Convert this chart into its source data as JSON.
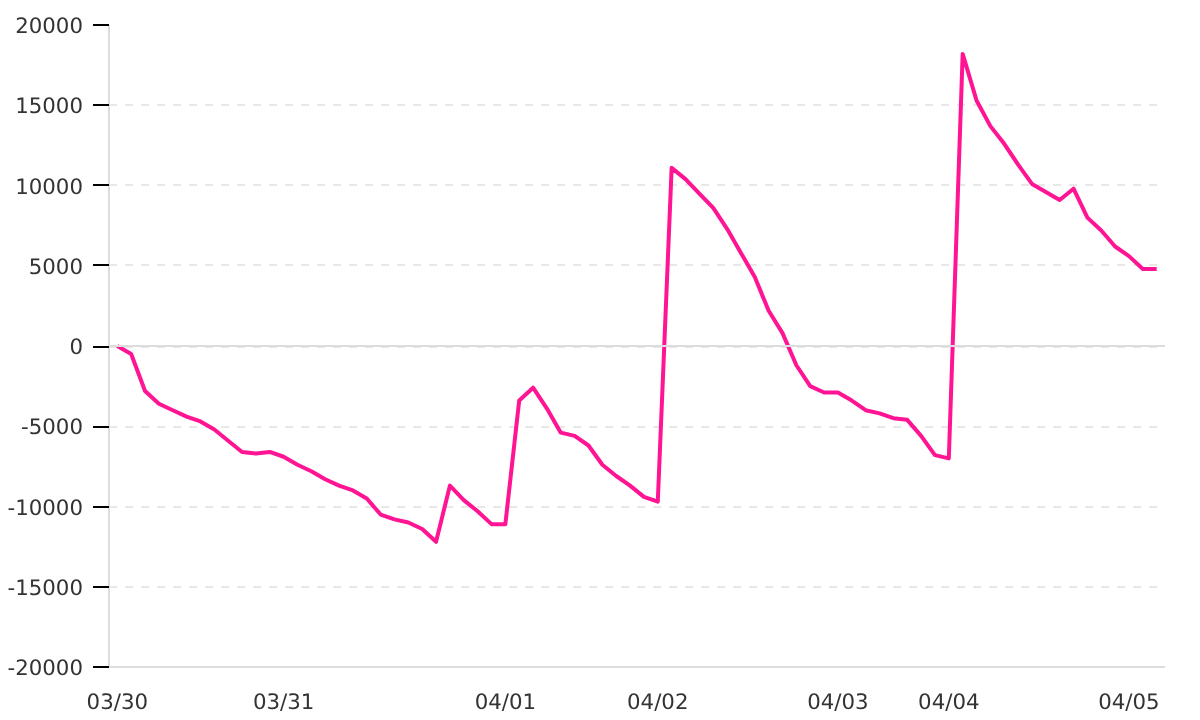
{
  "chart_data": {
    "type": "line",
    "categories": [
      "03/30",
      null,
      null,
      null,
      null,
      null,
      null,
      null,
      null,
      null,
      null,
      null,
      "03/31",
      null,
      null,
      null,
      null,
      null,
      null,
      null,
      null,
      null,
      null,
      null,
      null,
      null,
      null,
      null,
      "04/01",
      null,
      null,
      null,
      null,
      null,
      null,
      null,
      null,
      null,
      null,
      "04/02",
      null,
      null,
      null,
      null,
      null,
      null,
      null,
      null,
      null,
      null,
      null,
      null,
      "04/03",
      null,
      null,
      null,
      null,
      null,
      null,
      null,
      "04/04",
      null,
      null,
      null,
      null,
      null,
      null,
      null,
      null,
      null,
      null,
      null,
      null,
      "04/05",
      null,
      null
    ],
    "series": [
      {
        "color": "#ff1493",
        "values": [
          0,
          -500,
          -2800,
          -3600,
          -4000,
          -4400,
          -4700,
          -5200,
          -5900,
          -6600,
          -6700,
          -6600,
          -6900,
          -7400,
          -7800,
          -8300,
          -8700,
          -9000,
          -9500,
          -10500,
          -10800,
          -11000,
          -11400,
          -12200,
          -8700,
          -9600,
          -10300,
          -11100,
          -11100,
          -3400,
          -2600,
          -3900,
          -5400,
          -5600,
          -6200,
          -7400,
          -8100,
          -8700,
          -9400,
          -9700,
          11100,
          10400,
          9500,
          8600,
          7300,
          5800,
          4300,
          2200,
          800,
          -1200,
          -2500,
          -2900,
          -2900,
          -3400,
          -4000,
          -4200,
          -4500,
          -4600,
          -5600,
          -6800,
          -7000,
          18200,
          15300,
          13700,
          12600,
          11300,
          10100,
          9600,
          9100,
          9800,
          8000,
          7200,
          6200,
          5600,
          4800,
          4800
        ]
      }
    ],
    "ylim": [
      -20000,
      20000
    ],
    "yticks": [
      -20000,
      -15000,
      -10000,
      -5000,
      0,
      5000,
      10000,
      15000,
      20000
    ],
    "grid": "y",
    "marker": "none",
    "line_style": "solid",
    "ref_lines": [
      {
        "axis": "y",
        "value": 0,
        "color": "#dddddd"
      }
    ]
  }
}
